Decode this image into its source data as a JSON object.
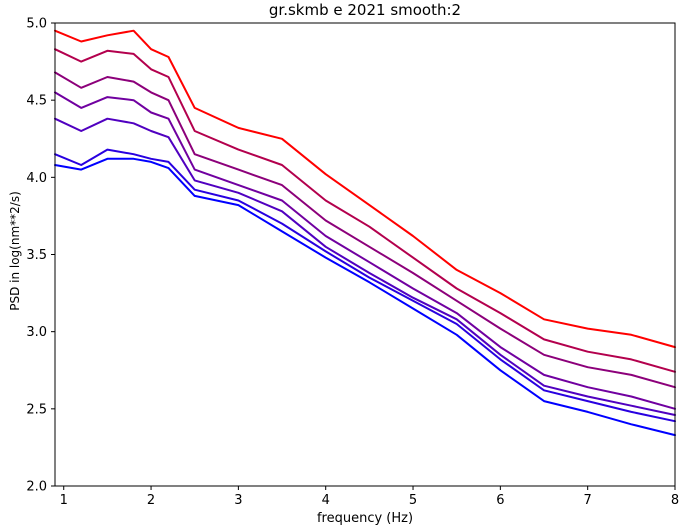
{
  "chart_data": {
    "type": "line",
    "title": "gr.skmb e 2021 smooth:2",
    "xlabel": "frequency (Hz)",
    "ylabel": "PSD in log(nm**2/s)",
    "xlim": [
      0.9,
      8
    ],
    "ylim": [
      2.0,
      5.0
    ],
    "xticks": [
      1,
      2,
      3,
      4,
      5,
      6,
      7,
      8
    ],
    "yticks": [
      2.0,
      2.5,
      3.0,
      3.5,
      4.0,
      4.5,
      5.0
    ],
    "grid": false,
    "legend": "none",
    "x": [
      0.9,
      1.2,
      1.5,
      1.8,
      2.0,
      2.2,
      2.5,
      3.0,
      3.5,
      4.0,
      4.5,
      5.0,
      5.5,
      6.0,
      6.5,
      7.0,
      7.5,
      8.0
    ],
    "series": [
      {
        "color": "#ff0000",
        "values": [
          4.95,
          4.88,
          4.92,
          4.95,
          4.83,
          4.78,
          4.45,
          4.32,
          4.25,
          4.02,
          3.82,
          3.62,
          3.4,
          3.25,
          3.08,
          3.02,
          2.98,
          2.9
        ]
      },
      {
        "color": "#b3004d",
        "values": [
          4.83,
          4.75,
          4.82,
          4.8,
          4.7,
          4.65,
          4.3,
          4.18,
          4.08,
          3.85,
          3.68,
          3.48,
          3.28,
          3.12,
          2.95,
          2.87,
          2.82,
          2.74
        ]
      },
      {
        "color": "#8c007a",
        "values": [
          4.68,
          4.58,
          4.65,
          4.62,
          4.55,
          4.5,
          4.15,
          4.05,
          3.95,
          3.72,
          3.55,
          3.38,
          3.2,
          3.02,
          2.85,
          2.77,
          2.72,
          2.64
        ]
      },
      {
        "color": "#7000a0",
        "values": [
          4.55,
          4.45,
          4.52,
          4.5,
          4.42,
          4.38,
          4.05,
          3.95,
          3.85,
          3.62,
          3.45,
          3.28,
          3.12,
          2.9,
          2.72,
          2.64,
          2.58,
          2.5
        ]
      },
      {
        "color": "#5000c0",
        "values": [
          4.38,
          4.3,
          4.38,
          4.35,
          4.3,
          4.26,
          3.98,
          3.9,
          3.78,
          3.55,
          3.38,
          3.22,
          3.08,
          2.85,
          2.65,
          2.58,
          2.52,
          2.46
        ]
      },
      {
        "color": "#2800e0",
        "values": [
          4.15,
          4.08,
          4.18,
          4.15,
          4.12,
          4.1,
          3.92,
          3.85,
          3.7,
          3.52,
          3.35,
          3.2,
          3.05,
          2.82,
          2.62,
          2.55,
          2.48,
          2.42
        ]
      },
      {
        "color": "#0000ff",
        "values": [
          4.08,
          4.05,
          4.12,
          4.12,
          4.1,
          4.06,
          3.88,
          3.82,
          3.65,
          3.48,
          3.32,
          3.15,
          2.98,
          2.75,
          2.55,
          2.48,
          2.4,
          2.33
        ]
      }
    ]
  }
}
